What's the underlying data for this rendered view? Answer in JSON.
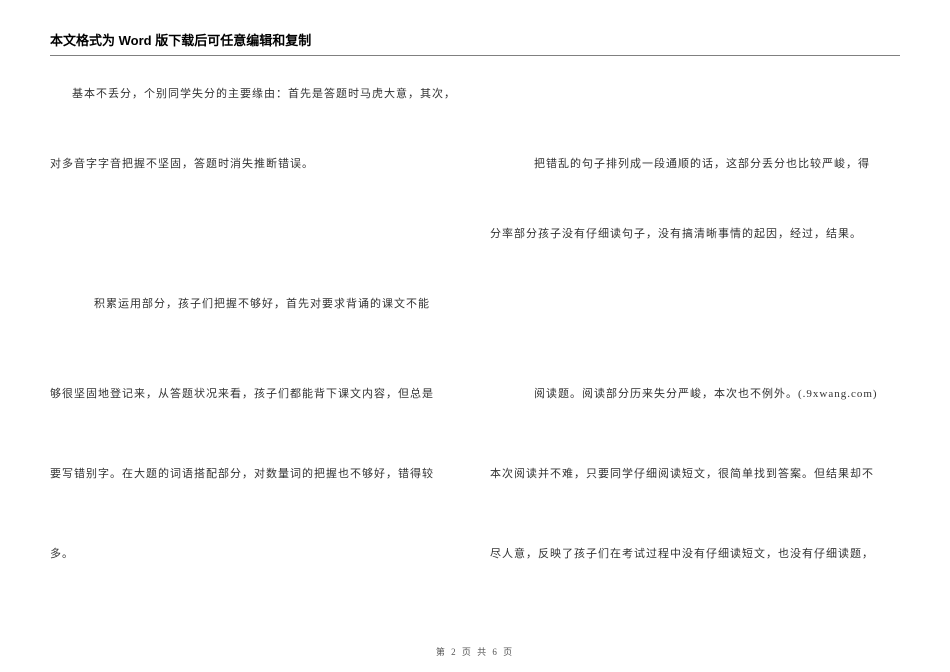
{
  "header": {
    "title": "本文格式为 Word 版下载后可任意编辑和复制"
  },
  "left_column": {
    "l1": "基本不丢分，个别同学失分的主要缘由：首先是答题时马虎大意，其次，",
    "l2": "对多音字字音把握不坚固，答题时消失推断错误。",
    "l3": "积累运用部分，孩子们把握不够好，首先对要求背诵的课文不能",
    "l4": "够很坚固地登记来，从答题状况来看，孩子们都能背下课文内容，但总是",
    "l5": "要写错别字。在大题的词语搭配部分，对数量词的把握也不够好，错得较",
    "l6": "多。"
  },
  "right_column": {
    "r1": "把错乱的句子排列成一段通顺的话，这部分丢分也比较严峻，得",
    "r2": "分率部分孩子没有仔细读句子，没有搞清晰事情的起因，经过，结果。",
    "r3": "阅读题。阅读部分历来失分严峻，本次也不例外。(.9xwang.com)",
    "r4": "本次阅读并不难，只要同学仔细阅读短文，很简单找到答案。但结果却不",
    "r5": "尽人意，反映了孩子们在考试过程中没有仔细读短文，也没有仔细读题，"
  },
  "footer": {
    "text": "第 2 页 共 6 页"
  },
  "layout": {
    "left_positions": {
      "l1": 15,
      "l2": 85,
      "l3": 225,
      "l4": 315,
      "l5": 395,
      "l6": 475
    },
    "right_positions": {
      "r1": 85,
      "r2": 155,
      "r3": 315,
      "r4": 395,
      "r5": 475
    }
  },
  "style": {
    "body_fontsize": 11,
    "header_fontsize": 13,
    "footer_fontsize": 9,
    "text_color": "#333333",
    "rule_color": "#808080",
    "background": "#ffffff"
  }
}
